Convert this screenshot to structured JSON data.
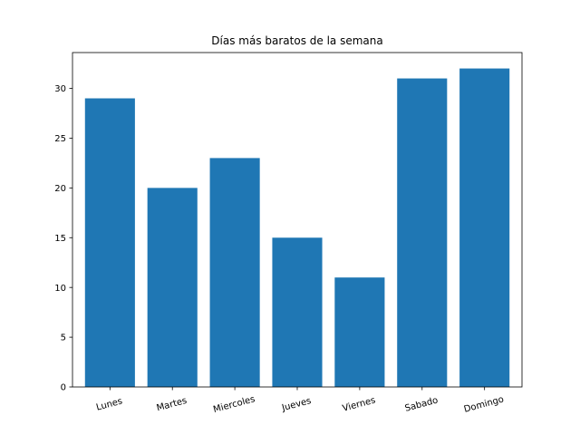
{
  "chart_data": {
    "type": "bar",
    "title": "Días más baratos de la semana",
    "categories": [
      "Lunes",
      "Martes",
      "Miercoles",
      "Jueves",
      "Viernes",
      "Sabado",
      "Domingo"
    ],
    "values": [
      29,
      20,
      23,
      15,
      11,
      31,
      32
    ],
    "ylim": [
      0,
      33.6
    ],
    "yticks": [
      0,
      5,
      10,
      15,
      20,
      25,
      30
    ],
    "xlabel": "",
    "ylabel": "",
    "grid": false,
    "bar_color": "#1f77b4",
    "xtick_rotation_deg": -15
  }
}
